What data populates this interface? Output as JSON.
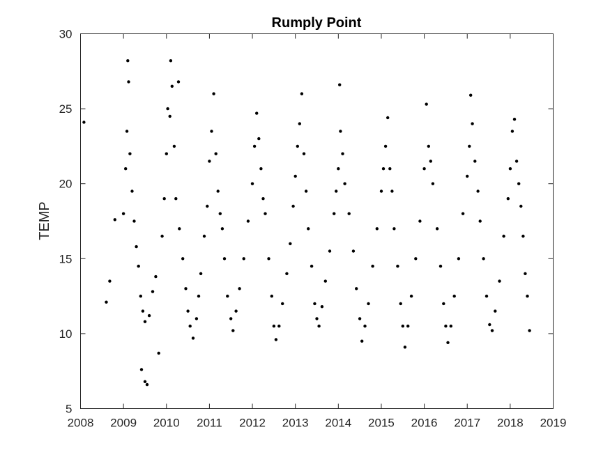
{
  "chart_data": {
    "type": "scatter",
    "title": "Rumply Point",
    "xlabel": "",
    "ylabel": "TEMP",
    "xlim": [
      2008,
      2019
    ],
    "ylim": [
      5,
      30
    ],
    "xticks": [
      "2008",
      "2009",
      "2010",
      "2011",
      "2012",
      "2013",
      "2014",
      "2015",
      "2016",
      "2017",
      "2018",
      "2019"
    ],
    "yticks": [
      "5",
      "10",
      "15",
      "20",
      "25",
      "30"
    ],
    "grid": false,
    "legend": "none",
    "marker_color": "#000000",
    "series": [
      {
        "marker": "dot",
        "points": [
          [
            2008.08,
            24.1
          ],
          [
            2008.6,
            12.1
          ],
          [
            2008.68,
            13.5
          ],
          [
            2008.8,
            17.6
          ],
          [
            2009.0,
            18.0
          ],
          [
            2009.05,
            21.0
          ],
          [
            2009.08,
            23.5
          ],
          [
            2009.1,
            28.2
          ],
          [
            2009.12,
            26.8
          ],
          [
            2009.15,
            22.0
          ],
          [
            2009.2,
            19.5
          ],
          [
            2009.25,
            17.5
          ],
          [
            2009.3,
            15.8
          ],
          [
            2009.35,
            14.5
          ],
          [
            2009.4,
            12.5
          ],
          [
            2009.45,
            11.5
          ],
          [
            2009.5,
            10.8
          ],
          [
            2009.42,
            7.6
          ],
          [
            2009.5,
            6.8
          ],
          [
            2009.55,
            6.6
          ],
          [
            2009.6,
            11.2
          ],
          [
            2009.68,
            12.8
          ],
          [
            2009.75,
            13.8
          ],
          [
            2009.82,
            8.7
          ],
          [
            2009.9,
            16.5
          ],
          [
            2009.95,
            19.0
          ],
          [
            2010.0,
            22.0
          ],
          [
            2010.03,
            25.0
          ],
          [
            2010.08,
            24.5
          ],
          [
            2010.1,
            28.2
          ],
          [
            2010.13,
            26.5
          ],
          [
            2010.18,
            22.5
          ],
          [
            2010.22,
            19.0
          ],
          [
            2010.28,
            26.8
          ],
          [
            2010.3,
            17.0
          ],
          [
            2010.38,
            15.0
          ],
          [
            2010.45,
            13.0
          ],
          [
            2010.5,
            11.5
          ],
          [
            2010.55,
            10.5
          ],
          [
            2010.62,
            9.7
          ],
          [
            2010.7,
            11.0
          ],
          [
            2010.75,
            12.5
          ],
          [
            2010.8,
            14.0
          ],
          [
            2010.88,
            16.5
          ],
          [
            2010.95,
            18.5
          ],
          [
            2011.0,
            21.5
          ],
          [
            2011.05,
            23.5
          ],
          [
            2011.1,
            26.0
          ],
          [
            2011.15,
            22.0
          ],
          [
            2011.2,
            19.5
          ],
          [
            2011.25,
            18.0
          ],
          [
            2011.3,
            17.0
          ],
          [
            2011.35,
            15.0
          ],
          [
            2011.42,
            12.5
          ],
          [
            2011.5,
            11.0
          ],
          [
            2011.55,
            10.2
          ],
          [
            2011.62,
            11.5
          ],
          [
            2011.7,
            13.0
          ],
          [
            2011.8,
            15.0
          ],
          [
            2011.9,
            17.5
          ],
          [
            2012.0,
            20.0
          ],
          [
            2012.05,
            22.5
          ],
          [
            2012.1,
            24.7
          ],
          [
            2012.15,
            23.0
          ],
          [
            2012.2,
            21.0
          ],
          [
            2012.25,
            19.0
          ],
          [
            2012.3,
            18.0
          ],
          [
            2012.38,
            15.0
          ],
          [
            2012.45,
            12.5
          ],
          [
            2012.5,
            10.5
          ],
          [
            2012.55,
            9.6
          ],
          [
            2012.62,
            10.5
          ],
          [
            2012.7,
            12.0
          ],
          [
            2012.8,
            14.0
          ],
          [
            2012.88,
            16.0
          ],
          [
            2012.95,
            18.5
          ],
          [
            2013.0,
            20.5
          ],
          [
            2013.05,
            22.5
          ],
          [
            2013.1,
            24.0
          ],
          [
            2013.15,
            26.0
          ],
          [
            2013.2,
            22.0
          ],
          [
            2013.25,
            19.5
          ],
          [
            2013.3,
            17.0
          ],
          [
            2013.38,
            14.5
          ],
          [
            2013.45,
            12.0
          ],
          [
            2013.5,
            11.0
          ],
          [
            2013.55,
            10.5
          ],
          [
            2013.62,
            11.8
          ],
          [
            2013.7,
            13.5
          ],
          [
            2013.8,
            15.5
          ],
          [
            2013.9,
            18.0
          ],
          [
            2013.95,
            19.5
          ],
          [
            2014.0,
            21.0
          ],
          [
            2014.03,
            26.6
          ],
          [
            2014.05,
            23.5
          ],
          [
            2014.1,
            22.0
          ],
          [
            2014.15,
            20.0
          ],
          [
            2014.25,
            18.0
          ],
          [
            2014.35,
            15.5
          ],
          [
            2014.42,
            13.0
          ],
          [
            2014.5,
            11.0
          ],
          [
            2014.55,
            9.5
          ],
          [
            2014.62,
            10.5
          ],
          [
            2014.7,
            12.0
          ],
          [
            2014.8,
            14.5
          ],
          [
            2014.9,
            17.0
          ],
          [
            2015.0,
            19.5
          ],
          [
            2015.05,
            21.0
          ],
          [
            2015.1,
            22.5
          ],
          [
            2015.15,
            24.4
          ],
          [
            2015.2,
            21.0
          ],
          [
            2015.25,
            19.5
          ],
          [
            2015.3,
            17.0
          ],
          [
            2015.38,
            14.5
          ],
          [
            2015.45,
            12.0
          ],
          [
            2015.5,
            10.5
          ],
          [
            2015.55,
            9.1
          ],
          [
            2015.62,
            10.5
          ],
          [
            2015.7,
            12.5
          ],
          [
            2015.8,
            15.0
          ],
          [
            2015.9,
            17.5
          ],
          [
            2016.0,
            21.0
          ],
          [
            2016.05,
            25.3
          ],
          [
            2016.1,
            22.5
          ],
          [
            2016.15,
            21.5
          ],
          [
            2016.2,
            20.0
          ],
          [
            2016.3,
            17.0
          ],
          [
            2016.38,
            14.5
          ],
          [
            2016.45,
            12.0
          ],
          [
            2016.5,
            10.5
          ],
          [
            2016.55,
            9.4
          ],
          [
            2016.62,
            10.5
          ],
          [
            2016.7,
            12.5
          ],
          [
            2016.8,
            15.0
          ],
          [
            2016.9,
            18.0
          ],
          [
            2017.0,
            20.5
          ],
          [
            2017.05,
            22.5
          ],
          [
            2017.08,
            25.9
          ],
          [
            2017.12,
            24.0
          ],
          [
            2017.18,
            21.5
          ],
          [
            2017.25,
            19.5
          ],
          [
            2017.3,
            17.5
          ],
          [
            2017.38,
            15.0
          ],
          [
            2017.45,
            12.5
          ],
          [
            2017.52,
            10.6
          ],
          [
            2017.58,
            10.2
          ],
          [
            2017.65,
            11.5
          ],
          [
            2017.75,
            13.5
          ],
          [
            2017.85,
            16.5
          ],
          [
            2017.95,
            19.0
          ],
          [
            2018.0,
            21.0
          ],
          [
            2018.05,
            23.5
          ],
          [
            2018.1,
            24.3
          ],
          [
            2018.15,
            21.5
          ],
          [
            2018.2,
            20.0
          ],
          [
            2018.25,
            18.5
          ],
          [
            2018.3,
            16.5
          ],
          [
            2018.35,
            14.0
          ],
          [
            2018.4,
            12.5
          ],
          [
            2018.45,
            10.2
          ]
        ]
      }
    ]
  }
}
